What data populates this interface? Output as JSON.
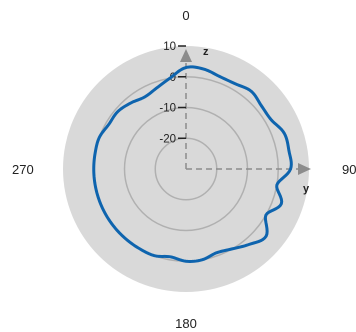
{
  "chart_data": {
    "type": "polar-line",
    "azimuth_labels": [
      "0",
      "90",
      "180",
      "270"
    ],
    "radial_axis": {
      "range": [
        -30,
        10
      ],
      "ticks": [
        10,
        0,
        -10,
        -20
      ],
      "tick_labels": [
        "10",
        "0",
        "-10",
        "-20"
      ]
    },
    "axes_labels": {
      "z": "z",
      "y": "y"
    },
    "grid": true,
    "colors": {
      "disk": "#d9d9d9",
      "grid": "#b0b0b0",
      "trace": "#0e64ae",
      "axis_arrow": "#8c8c8c"
    },
    "series": [
      {
        "angles_deg": [
          0,
          10,
          20,
          30,
          40,
          50,
          60,
          70,
          80,
          90,
          100,
          110,
          120,
          130,
          140,
          150,
          160,
          170,
          180,
          190,
          200,
          210,
          220,
          230,
          240,
          250,
          260,
          270,
          280,
          290,
          300,
          310,
          320,
          330,
          340,
          350
        ],
        "values": [
          3,
          3,
          2,
          2,
          3,
          2,
          2,
          4,
          4,
          4,
          0,
          3,
          0,
          4,
          2,
          0,
          -1,
          0,
          0,
          -1,
          0,
          0,
          0,
          0,
          0,
          0,
          0,
          0,
          0,
          0,
          -1,
          -1,
          -2,
          -3,
          -2,
          0
        ]
      }
    ]
  }
}
